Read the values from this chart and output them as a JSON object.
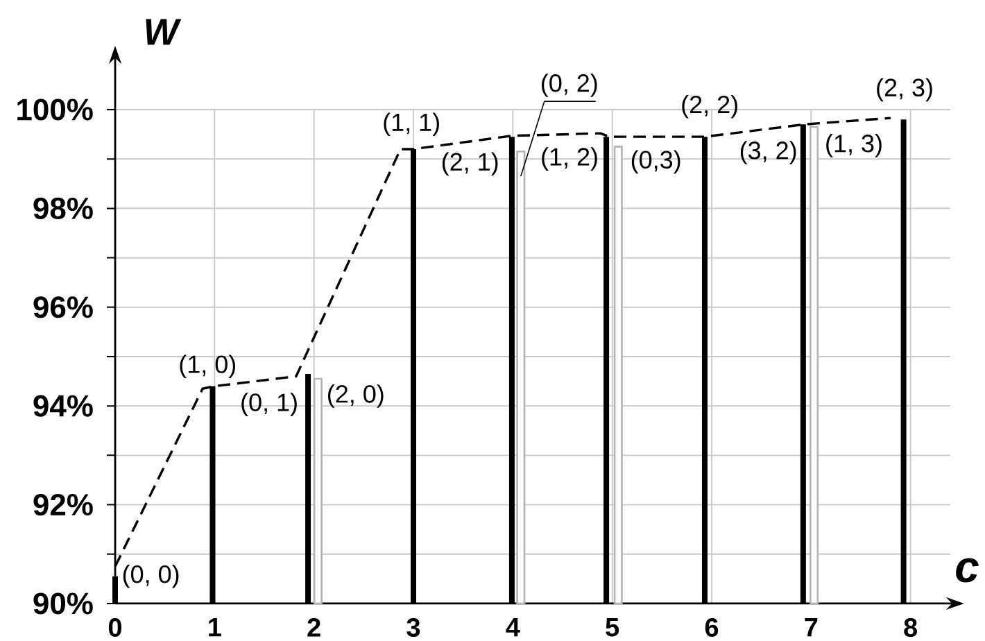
{
  "chart_data": {
    "type": "bar",
    "xlabel": "c",
    "ylabel": "W",
    "xlim": [
      0,
      8.4
    ],
    "ylim": [
      90,
      100
    ],
    "xticks": [
      0,
      1,
      2,
      3,
      4,
      5,
      6,
      7,
      8
    ],
    "yticks": [
      {
        "value": 90,
        "label": "90%"
      },
      {
        "value": 91,
        "label": null
      },
      {
        "value": 92,
        "label": "92%"
      },
      {
        "value": 93,
        "label": null
      },
      {
        "value": 94,
        "label": "94%"
      },
      {
        "value": 95,
        "label": null
      },
      {
        "value": 96,
        "label": "96%"
      },
      {
        "value": 97,
        "label": null
      },
      {
        "value": 98,
        "label": "98%"
      },
      {
        "value": 99,
        "label": null
      },
      {
        "value": 100,
        "label": "100%"
      }
    ],
    "grid": true,
    "series": [
      {
        "color": "#000000",
        "x": [
          0,
          0.98,
          1.94,
          3.0,
          3.99,
          4.94,
          5.93,
          6.92,
          7.93
        ],
        "values": [
          90.55,
          94.4,
          94.65,
          99.2,
          99.45,
          99.45,
          99.45,
          99.7,
          99.8
        ]
      },
      {
        "color": "#b3b3b3",
        "x": [
          2.04,
          4.08,
          5.06,
          7.03
        ],
        "values": [
          94.55,
          99.15,
          99.25,
          99.65
        ]
      },
      {
        "type": "line",
        "line_style": "dashed",
        "color": "#000000",
        "x": [
          0,
          0.88,
          1.0,
          1.82,
          2.87,
          3.0,
          3.99,
          4.88,
          4.97,
          5.93,
          6.93,
          7.8
        ],
        "values": [
          90.75,
          94.35,
          94.4,
          94.6,
          99.2,
          99.2,
          99.47,
          99.52,
          99.45,
          99.45,
          99.7,
          99.83
        ]
      }
    ],
    "annotations": [
      {
        "text": "(0, 0)",
        "x": 0,
        "y": 90.55
      },
      {
        "text": "(1, 0)",
        "x": 0.98,
        "y": 94.4
      },
      {
        "text": "(0, 1)",
        "x": 1.94,
        "y": 94.65
      },
      {
        "text": "(2, 0)",
        "x": 2.04,
        "y": 94.55
      },
      {
        "text": "(1, 1)",
        "x": 3.0,
        "y": 99.2
      },
      {
        "text": "(2, 1)",
        "x": 3.99,
        "y": 99.45
      },
      {
        "text": "(0, 2)",
        "x": 4.08,
        "y": 98.65
      },
      {
        "text": "(1, 2)",
        "x": 4.94,
        "y": 99.45
      },
      {
        "text": "(0,3)",
        "x": 5.06,
        "y": 99.25
      },
      {
        "text": "(2, 2)",
        "x": 5.93,
        "y": 99.45
      },
      {
        "text": "(3, 2)",
        "x": 6.92,
        "y": 99.7
      },
      {
        "text": "(1, 3)",
        "x": 7.03,
        "y": 99.65
      },
      {
        "text": "(2, 3)",
        "x": 7.93,
        "y": 99.8
      }
    ]
  }
}
